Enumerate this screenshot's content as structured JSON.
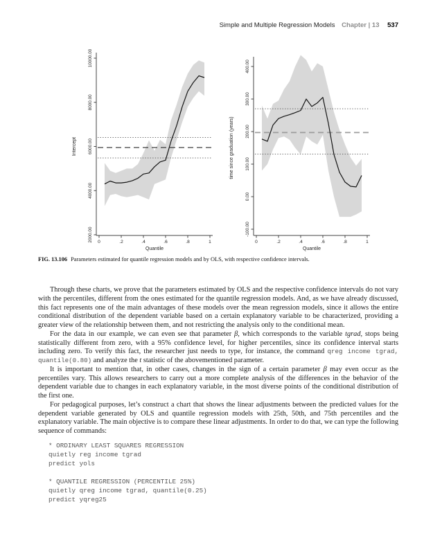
{
  "header": {
    "title": "Simple and Multiple Regression Models",
    "chapter": "Chapter | 13",
    "page_number": "537"
  },
  "figure": {
    "caption_label": "FIG. 13.106",
    "caption_text": "Parameters estimated for quantile regression models and by OLS, with respective confidence intervals."
  },
  "chart_data": [
    {
      "type": "line",
      "title": "",
      "xlabel": "Quantile",
      "ylabel": "Intercept",
      "x": [
        0.05,
        0.1,
        0.15,
        0.2,
        0.25,
        0.3,
        0.35,
        0.4,
        0.45,
        0.5,
        0.55,
        0.6,
        0.65,
        0.7,
        0.75,
        0.8,
        0.85,
        0.9,
        0.95
      ],
      "values": [
        4300,
        4430,
        4350,
        4350,
        4380,
        4450,
        4560,
        4750,
        4800,
        5080,
        5300,
        5380,
        6250,
        6950,
        7800,
        8500,
        8900,
        9200,
        9120
      ],
      "band_lower": [
        3300,
        3800,
        3850,
        3750,
        3700,
        3750,
        3800,
        3700,
        3600,
        4300,
        4400,
        4500,
        5500,
        6300,
        7100,
        7800,
        8200,
        8500,
        8300
      ],
      "band_upper": [
        5250,
        4900,
        4800,
        4900,
        5000,
        5000,
        5200,
        5700,
        6280,
        5800,
        6300,
        6100,
        7200,
        7900,
        8700,
        9300,
        9700,
        9900,
        9800
      ],
      "ols_estimate": 5950,
      "ols_ci_lower": 5480,
      "ols_ci_upper": 6410,
      "xlim": [
        0,
        1
      ],
      "ylim": [
        2000,
        10000
      ],
      "xticks": [
        0,
        0.2,
        0.4,
        0.6,
        0.8,
        1
      ],
      "xtick_labels": [
        "0",
        ".2",
        ".4",
        ".6",
        ".8",
        "1"
      ],
      "yticks": [
        2000,
        4000,
        6000,
        8000,
        10000
      ],
      "ytick_labels": [
        "2000.00",
        "4000.00",
        "6000.00",
        "8000.00",
        "10000.00"
      ],
      "grid": false,
      "legend": "none",
      "colors": {
        "band": "#d8d8d8",
        "line": "#141414",
        "ols_dash": "#2a2a2a",
        "ols_ci": "#4a4a4a",
        "axis": "#444444"
      }
    },
    {
      "type": "line",
      "title": "",
      "xlabel": "Quantile",
      "ylabel": "time since graduation (years)",
      "x": [
        0.05,
        0.1,
        0.15,
        0.2,
        0.25,
        0.3,
        0.35,
        0.4,
        0.45,
        0.5,
        0.55,
        0.6,
        0.65,
        0.7,
        0.75,
        0.8,
        0.85,
        0.9,
        0.95
      ],
      "values": [
        177,
        170,
        220,
        240,
        247,
        252,
        258,
        265,
        300,
        277,
        288,
        305,
        225,
        130,
        75,
        45,
        32,
        30,
        65
      ],
      "band_lower": [
        80,
        100,
        145,
        180,
        185,
        175,
        150,
        130,
        185,
        170,
        160,
        190,
        80,
        0,
        -62,
        -62,
        -62,
        -55,
        -45
      ],
      "band_upper": [
        280,
        240,
        285,
        295,
        330,
        355,
        400,
        435,
        420,
        385,
        410,
        400,
        330,
        260,
        205,
        160,
        120,
        95,
        116
      ],
      "ols_estimate": 197,
      "ols_ci_lower": 131,
      "ols_ci_upper": 270,
      "xlim": [
        0,
        1
      ],
      "ylim": [
        -100,
        400
      ],
      "xticks": [
        0,
        0.2,
        0.4,
        0.6,
        0.8,
        1
      ],
      "xtick_labels": [
        "0",
        ".2",
        ".4",
        ".6",
        ".8",
        "1"
      ],
      "yticks": [
        -100,
        0,
        100,
        200,
        300,
        400
      ],
      "ytick_labels": [
        "-100.00",
        "0.00",
        "100.00",
        "200.00",
        "300.00",
        "400.00"
      ],
      "grid": false,
      "legend": "none",
      "colors": {
        "band": "#d8d8d8",
        "line": "#141414",
        "ols_dash": "#9c9c9c",
        "ols_ci": "#4a4a4a",
        "axis": "#444444"
      }
    }
  ],
  "paragraphs": [
    {
      "segments": [
        {
          "t": "Through these charts, we prove that the parameters estimated by OLS and the respective confidence intervals do not vary with the percentiles, different from the ones estimated for the quantile regression models. And, as we have already discussed, this fact represents one of the main advantages of these models over the mean regression models, since it allows the entire conditional distribution of the dependent variable based on a certain explanatory variable to be characterized, providing a greater view of the relationship between them, and not restricting the analysis only to the conditional mean."
        }
      ]
    },
    {
      "segments": [
        {
          "t": "For the data in our example, we can even see that parameter "
        },
        {
          "t": "β",
          "s": "i"
        },
        {
          "t": ", which corresponds to the variable "
        },
        {
          "t": "tgrad",
          "s": "i"
        },
        {
          "t": ", stops being statistically different from zero, with a 95% confidence level, for higher percentiles, since its confidence interval starts including zero. To verify this fact, the researcher just needs to type, for instance, the command "
        },
        {
          "t": "qreg income tgrad, quantile(0.80)",
          "s": "code"
        },
        {
          "t": " and analyze the "
        },
        {
          "t": "t",
          "s": "i"
        },
        {
          "t": " statistic of the abovementioned parameter."
        }
      ]
    },
    {
      "segments": [
        {
          "t": "It is important to mention that, in other cases, changes in the sign of a certain parameter "
        },
        {
          "t": "β",
          "s": "i"
        },
        {
          "t": " may even occur as the percentiles vary. This allows researchers to carry out a more complete analysis of the differences in the behavior of the dependent variable due to changes in each explanatory variable, in the most diverse points of the conditional distribution of the first one."
        }
      ]
    },
    {
      "segments": [
        {
          "t": "For pedagogical purposes, let’s construct a chart that shows the linear adjustments between the predicted values for the dependent variable generated by OLS and quantile regression models with 25th, 50th, and 75th percentiles and the explanatory variable. The main objective is to compare these linear adjustments. In order to do that, we can type the following sequence of commands:"
        }
      ]
    }
  ],
  "code_blocks": [
    {
      "lines": [
        "* ORDINARY LEAST SQUARES REGRESSION",
        "quietly reg income tgrad",
        "predict yols"
      ]
    },
    {
      "lines": [
        "* QUANTILE REGRESSION (PERCENTILE 25%)",
        "quietly qreg income tgrad, quantile(0.25)",
        "predict yqreg25"
      ]
    }
  ]
}
